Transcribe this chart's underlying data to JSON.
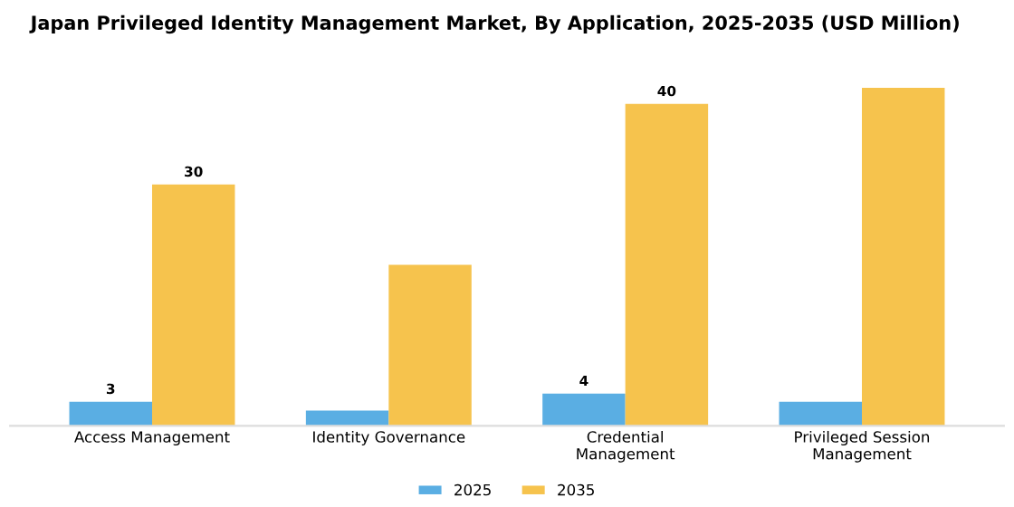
{
  "chart_data": {
    "type": "bar",
    "title": "Japan Privileged Identity Management Market, By Application, 2025-2035 (USD Million)",
    "categories": [
      "Access Management",
      "Identity Governance",
      "Credential\nManagement",
      "Privileged Session\nManagement"
    ],
    "series": [
      {
        "name": "2025",
        "color": "#5aaee3",
        "values": [
          3,
          1.9,
          4,
          3
        ],
        "value_labels": [
          "3",
          null,
          "4",
          null
        ]
      },
      {
        "name": "2035",
        "color": "#f6c34d",
        "values": [
          30,
          20,
          40,
          42
        ],
        "value_labels": [
          "30",
          null,
          "40",
          null
        ]
      }
    ],
    "legend": "bottom"
  }
}
